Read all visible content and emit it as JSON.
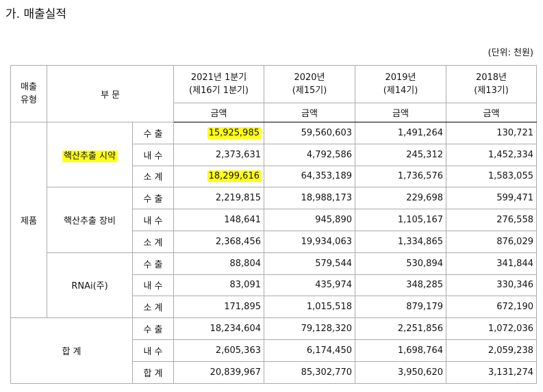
{
  "title": "가. 매출실적",
  "unit": "(단위: 천원)",
  "table": {
    "header": {
      "type_label": [
        "매출",
        "유형"
      ],
      "division_label": "부 문",
      "columns": [
        {
          "period": "2021년 1분기",
          "term": "(제16기 1분기)",
          "measure": "금액"
        },
        {
          "period": "2020년",
          "term": "(제15기)",
          "measure": "금액"
        },
        {
          "period": "2019년",
          "term": "(제14기)",
          "measure": "금액"
        },
        {
          "period": "2018년",
          "term": "(제13기)",
          "measure": "금액"
        }
      ]
    },
    "groups": [
      {
        "type": "제품",
        "subgroups": [
          {
            "name": "핵산추출 시약",
            "highlight": true,
            "rows": [
              {
                "label": "수 출",
                "values": [
                  "15,925,985",
                  "59,560,603",
                  "1,491,264",
                  "130,721"
                ],
                "highlight": [
                  true,
                  false,
                  false,
                  false
                ]
              },
              {
                "label": "내 수",
                "values": [
                  "2,373,631",
                  "4,792,586",
                  "245,312",
                  "1,452,334"
                ],
                "highlight": [
                  false,
                  false,
                  false,
                  false
                ]
              },
              {
                "label": "소 계",
                "values": [
                  "18,299,616",
                  "64,353,189",
                  "1,736,576",
                  "1,583,055"
                ],
                "highlight": [
                  true,
                  false,
                  false,
                  false
                ]
              }
            ]
          },
          {
            "name": "핵산추출 장비",
            "highlight": false,
            "rows": [
              {
                "label": "수 출",
                "values": [
                  "2,219,815",
                  "18,988,173",
                  "229,698",
                  "599,471"
                ],
                "highlight": [
                  false,
                  false,
                  false,
                  false
                ]
              },
              {
                "label": "내 수",
                "values": [
                  "148,641",
                  "945,890",
                  "1,105,167",
                  "276,558"
                ],
                "highlight": [
                  false,
                  false,
                  false,
                  false
                ]
              },
              {
                "label": "소 계",
                "values": [
                  "2,368,456",
                  "19,934,063",
                  "1,334,865",
                  "876,029"
                ],
                "highlight": [
                  false,
                  false,
                  false,
                  false
                ]
              }
            ]
          },
          {
            "name": "RNAi(주)",
            "highlight": false,
            "rows": [
              {
                "label": "수 출",
                "values": [
                  "88,804",
                  "579,544",
                  "530,894",
                  "341,844"
                ],
                "highlight": [
                  false,
                  false,
                  false,
                  false
                ]
              },
              {
                "label": "내 수",
                "values": [
                  "83,091",
                  "435,974",
                  "348,285",
                  "330,346"
                ],
                "highlight": [
                  false,
                  false,
                  false,
                  false
                ]
              },
              {
                "label": "소 계",
                "values": [
                  "171,895",
                  "1,015,518",
                  "879,179",
                  "672,190"
                ],
                "highlight": [
                  false,
                  false,
                  false,
                  false
                ]
              }
            ]
          }
        ]
      }
    ],
    "total": {
      "name": "합 계",
      "rows": [
        {
          "label": "수 출",
          "values": [
            "18,234,604",
            "79,128,320",
            "2,251,856",
            "1,072,036"
          ],
          "highlight": [
            false,
            false,
            false,
            false
          ]
        },
        {
          "label": "내 수",
          "values": [
            "2,605,363",
            "6,174,450",
            "1,698,764",
            "2,059,238"
          ],
          "highlight": [
            false,
            false,
            false,
            false
          ]
        },
        {
          "label": "합 계",
          "values": [
            "20,839,967",
            "85,302,770",
            "3,950,620",
            "3,131,274"
          ],
          "highlight": [
            false,
            false,
            false,
            false
          ]
        }
      ]
    }
  },
  "highlight_color": "#ffff1a"
}
